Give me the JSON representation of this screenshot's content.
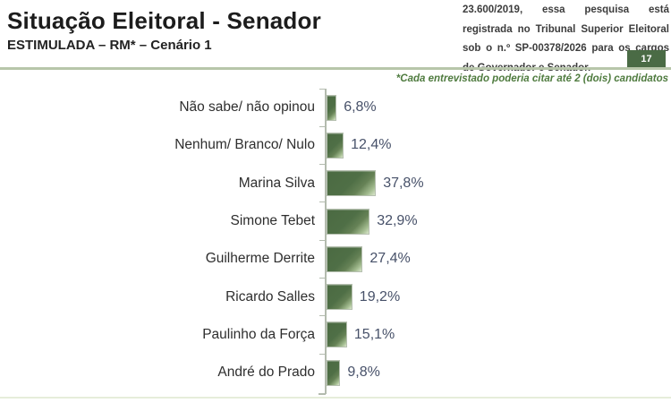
{
  "page": {
    "title": "Situação Eleitoral - Senador",
    "subtitle": "ESTIMULADA – RM* – Cenário 1",
    "registration_note": "23.600/2019, essa pesquisa está registrada no Tribunal Superior Eleitoral sob o n.º SP-00378/2026 para os cargos de Governador e Senador.",
    "page_number": "17",
    "footnote": "*Cada entrevistado poderia citar até 2 (dois) candidatos"
  },
  "colors": {
    "bar-dark": "#4d6b44",
    "bar-light": "#dbe7cd",
    "divider": "#b7c6aa",
    "page-box": "#4a6b45",
    "note-green": "#4f7b3f",
    "value-text": "#475169",
    "axis": "#b3bbae"
  },
  "chart_data": {
    "type": "bar",
    "orientation": "horizontal",
    "title": "Situação Eleitoral - Senador",
    "subtitle": "ESTIMULADA – RM* – Cenário 1",
    "categories": [
      "Não sabe/ não opinou",
      "Nenhum/ Branco/ Nulo",
      "Marina Silva",
      "Simone Tebet",
      "Guilherme Derrite",
      "Ricardo Salles",
      "Paulinho da Força",
      "André do Prado"
    ],
    "values": [
      6.8,
      12.4,
      37.8,
      32.9,
      27.4,
      19.2,
      15.1,
      9.8
    ],
    "value_labels": [
      "6,8%",
      "12,4%",
      "37,8%",
      "32,9%",
      "27,4%",
      "19,2%",
      "15,1%",
      "9,8%"
    ],
    "unit": "%",
    "xlim": [
      0,
      45
    ],
    "grid": false,
    "legend": false,
    "annotation": "*Cada entrevistado poderia citar até 2 (dois) candidatos"
  }
}
